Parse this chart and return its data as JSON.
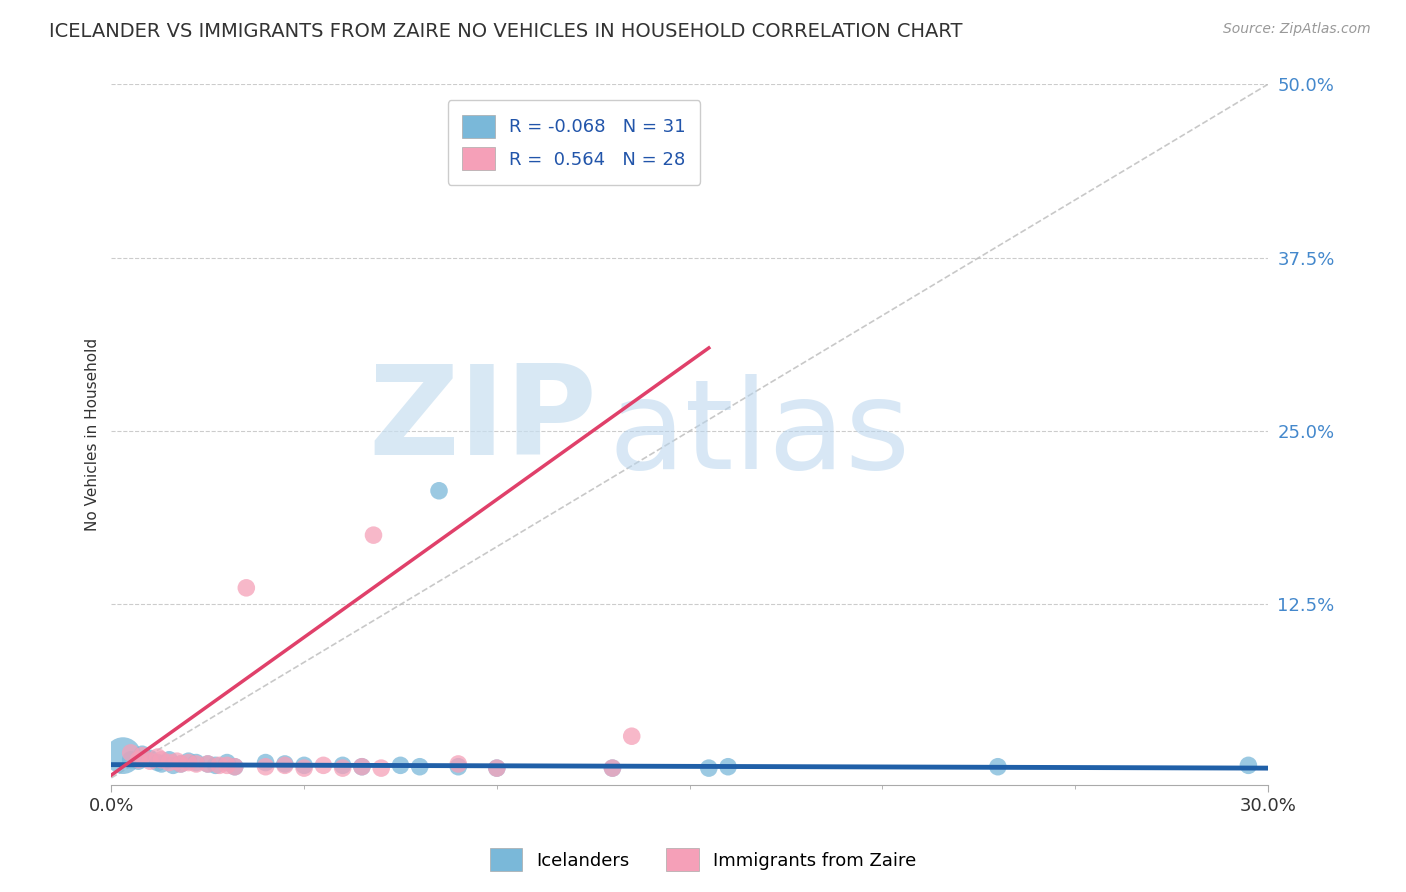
{
  "title": "ICELANDER VS IMMIGRANTS FROM ZAIRE NO VEHICLES IN HOUSEHOLD CORRELATION CHART",
  "source": "Source: ZipAtlas.com",
  "ylabel": "No Vehicles in Household",
  "xlim": [
    0.0,
    0.3
  ],
  "ylim": [
    -0.005,
    0.5
  ],
  "yticks_right": [
    0.0,
    0.125,
    0.25,
    0.375,
    0.5
  ],
  "ytick_labels_right": [
    "",
    "12.5%",
    "25.0%",
    "37.5%",
    "50.0%"
  ],
  "blue_color": "#7ab8d9",
  "pink_color": "#f5a0b8",
  "blue_line_color": "#2060a8",
  "pink_line_color": "#e0406a",
  "diagonal_color": "#bbbbbb",
  "R_blue": -0.068,
  "N_blue": 31,
  "R_pink": 0.564,
  "N_pink": 28,
  "legend_label_blue": "Icelanders",
  "legend_label_pink": "Immigrants from Zaire",
  "watermark_zip": "ZIP",
  "watermark_atlas": "atlas",
  "background_color": "#ffffff",
  "blue_scatter": [
    [
      0.003,
      0.016
    ],
    [
      0.005,
      0.013
    ],
    [
      0.007,
      0.012
    ],
    [
      0.008,
      0.017
    ],
    [
      0.01,
      0.014
    ],
    [
      0.012,
      0.011
    ],
    [
      0.013,
      0.01
    ],
    [
      0.015,
      0.013
    ],
    [
      0.016,
      0.009
    ],
    [
      0.018,
      0.01
    ],
    [
      0.02,
      0.012
    ],
    [
      0.022,
      0.011
    ],
    [
      0.025,
      0.01
    ],
    [
      0.027,
      0.009
    ],
    [
      0.03,
      0.011
    ],
    [
      0.032,
      0.008
    ],
    [
      0.04,
      0.011
    ],
    [
      0.045,
      0.01
    ],
    [
      0.05,
      0.009
    ],
    [
      0.06,
      0.009
    ],
    [
      0.065,
      0.008
    ],
    [
      0.075,
      0.009
    ],
    [
      0.08,
      0.008
    ],
    [
      0.085,
      0.207
    ],
    [
      0.09,
      0.008
    ],
    [
      0.1,
      0.007
    ],
    [
      0.13,
      0.007
    ],
    [
      0.155,
      0.007
    ],
    [
      0.16,
      0.008
    ],
    [
      0.23,
      0.008
    ],
    [
      0.295,
      0.009
    ]
  ],
  "pink_scatter": [
    [
      0.005,
      0.018
    ],
    [
      0.007,
      0.013
    ],
    [
      0.008,
      0.016
    ],
    [
      0.01,
      0.012
    ],
    [
      0.012,
      0.015
    ],
    [
      0.013,
      0.013
    ],
    [
      0.015,
      0.011
    ],
    [
      0.017,
      0.012
    ],
    [
      0.018,
      0.01
    ],
    [
      0.02,
      0.011
    ],
    [
      0.022,
      0.01
    ],
    [
      0.025,
      0.01
    ],
    [
      0.028,
      0.009
    ],
    [
      0.03,
      0.009
    ],
    [
      0.032,
      0.008
    ],
    [
      0.035,
      0.137
    ],
    [
      0.04,
      0.008
    ],
    [
      0.045,
      0.009
    ],
    [
      0.05,
      0.007
    ],
    [
      0.055,
      0.009
    ],
    [
      0.06,
      0.007
    ],
    [
      0.065,
      0.008
    ],
    [
      0.068,
      0.175
    ],
    [
      0.07,
      0.007
    ],
    [
      0.09,
      0.01
    ],
    [
      0.1,
      0.007
    ],
    [
      0.13,
      0.007
    ],
    [
      0.135,
      0.03
    ]
  ],
  "blue_large_point": [
    0.003,
    0.016
  ],
  "blue_large_size": 800
}
